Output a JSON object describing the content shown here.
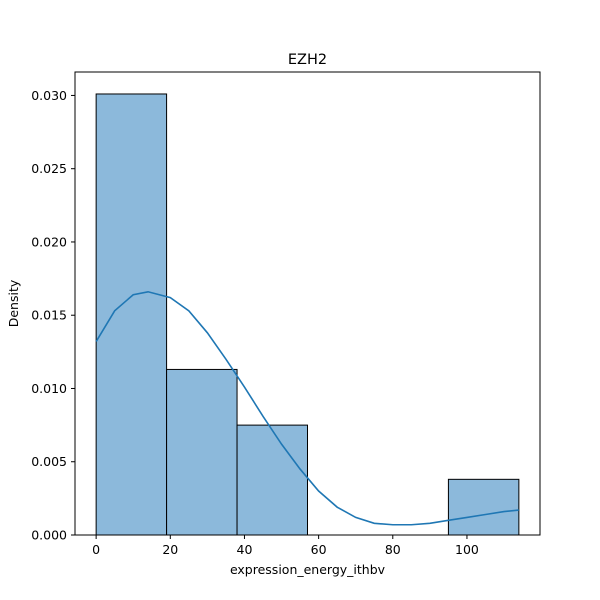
{
  "chart_data": {
    "type": "bar",
    "title": "EZH2",
    "xlabel": "expression_energy_ithbv",
    "ylabel": "Density",
    "xlim": [
      -5.7,
      119.7
    ],
    "ylim": [
      0,
      0.0316
    ],
    "x_ticks": [
      0,
      20,
      40,
      60,
      80,
      100
    ],
    "x_tick_labels": [
      "0",
      "20",
      "40",
      "60",
      "80",
      "100"
    ],
    "y_ticks": [
      0,
      0.005,
      0.01,
      0.015,
      0.02,
      0.025,
      0.03
    ],
    "y_tick_labels": [
      "0.000",
      "0.005",
      "0.010",
      "0.015",
      "0.020",
      "0.025",
      "0.030"
    ],
    "grid": false,
    "bins": [
      {
        "x0": 0,
        "x1": 19,
        "density": 0.0301
      },
      {
        "x0": 19,
        "x1": 38,
        "density": 0.0113
      },
      {
        "x0": 38,
        "x1": 57,
        "density": 0.0075
      },
      {
        "x0": 57,
        "x1": 76,
        "density": 0
      },
      {
        "x0": 76,
        "x1": 95,
        "density": 0
      },
      {
        "x0": 95,
        "x1": 114,
        "density": 0.0038
      }
    ],
    "kde": {
      "x": [
        0,
        5,
        10,
        14,
        20,
        25,
        30,
        35,
        40,
        45,
        50,
        55,
        60,
        65,
        70,
        75,
        80,
        85,
        90,
        95,
        100,
        105,
        110,
        114
      ],
      "y": [
        0.0132,
        0.0153,
        0.0164,
        0.0166,
        0.0162,
        0.0153,
        0.0138,
        0.012,
        0.0101,
        0.0081,
        0.0062,
        0.0045,
        0.003,
        0.0019,
        0.0012,
        0.0008,
        0.0007,
        0.0007,
        0.0008,
        0.001,
        0.0012,
        0.0014,
        0.0016,
        0.0017
      ]
    },
    "colors": {
      "bar_fill": "#8cb9db",
      "bar_edge": "#000000",
      "kde_line": "#1f77b4"
    }
  }
}
